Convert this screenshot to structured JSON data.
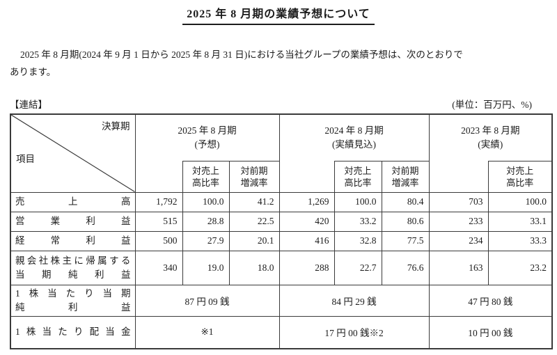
{
  "colors": {
    "background": "#ffffff",
    "text": "#1c1c1c",
    "border": "#3a3a3a"
  },
  "doc": {
    "title": "2025 年 8 月期の業績予想について",
    "intro_line1": "2025 年 8 月期(2024 年 9 月 1 日から 2025 年 8 月 31 日)における当社グループの業績予想は、次のとおりで",
    "intro_line2": "あります。",
    "scope_label": "【連結】",
    "unit_label": "(単位：百万円、%)"
  },
  "table": {
    "corner": {
      "top_right": "決算期",
      "bottom_left": "項目"
    },
    "groups": [
      {
        "title": "2025 年 8 月期",
        "subtitle": "(予想)",
        "subcols": [
          [
            "対売上",
            "高比率"
          ],
          [
            "対前期",
            "増減率"
          ]
        ]
      },
      {
        "title": "2024 年 8 月期",
        "subtitle": "(実績見込)",
        "subcols": [
          [
            "対売上",
            "高比率"
          ],
          [
            "対前期",
            "増減率"
          ]
        ]
      },
      {
        "title": "2023 年 8 月期",
        "subtitle": "(実績)",
        "subcols": [
          [
            "対売上",
            "高比率"
          ]
        ]
      }
    ],
    "rows": [
      {
        "label_lines": [
          "売上高"
        ],
        "cells": [
          "1,792",
          "100.0",
          "41.2",
          "1,269",
          "100.0",
          "80.4",
          "703",
          "100.0"
        ]
      },
      {
        "label_lines": [
          "営業利益"
        ],
        "cells": [
          "515",
          "28.8",
          "22.5",
          "420",
          "33.2",
          "80.6",
          "233",
          "33.1"
        ]
      },
      {
        "label_lines": [
          "経常利益"
        ],
        "cells": [
          "500",
          "27.9",
          "20.1",
          "416",
          "32.8",
          "77.5",
          "234",
          "33.3"
        ]
      },
      {
        "label_lines": [
          "親会社株主に帰属する",
          "当期純利益"
        ],
        "cells": [
          "340",
          "19.0",
          "18.0",
          "288",
          "22.7",
          "76.6",
          "163",
          "23.2"
        ]
      },
      {
        "label_lines": [
          "1株当たり当期",
          "純利益"
        ],
        "span_cells": [
          "87 円 09 銭",
          "84 円 29 銭",
          "47 円 80 銭"
        ]
      },
      {
        "label_lines": [
          "1株当たり配当金"
        ],
        "span_cells": [
          "※1",
          "17 円 00 銭※2",
          "10 円 00 銭"
        ]
      }
    ]
  }
}
